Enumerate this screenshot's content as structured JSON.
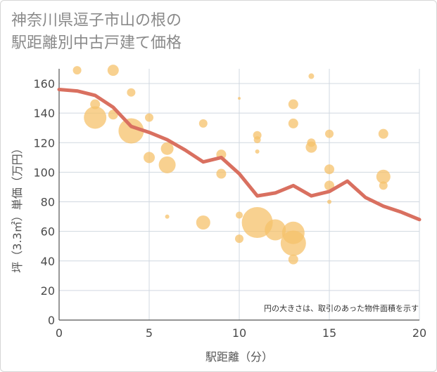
{
  "chart_data": {
    "type": "scatter",
    "title_lines": [
      "神奈川県逗子市山の根の",
      "駅距離別中古戸建て価格"
    ],
    "xlabel": "駅距離（分）",
    "ylabel": "坪（3.3㎡）単価（万円）",
    "xlim": [
      0,
      20
    ],
    "ylim": [
      0,
      170
    ],
    "xticks": [
      0,
      5,
      10,
      15,
      20
    ],
    "yticks": [
      0,
      20,
      40,
      60,
      80,
      100,
      120,
      140,
      160
    ],
    "grid": true,
    "note": "円の大きさは、取引のあった物件面積を示す",
    "colors": {
      "bubble": "#f5c26b",
      "line": "#d97060",
      "grid": "#d0d8e0"
    },
    "bubbles": [
      {
        "x": 1,
        "y": 169,
        "size": 6
      },
      {
        "x": 2,
        "y": 137,
        "size": 16
      },
      {
        "x": 2,
        "y": 146,
        "size": 7
      },
      {
        "x": 3,
        "y": 169,
        "size": 8
      },
      {
        "x": 3,
        "y": 139,
        "size": 7
      },
      {
        "x": 4,
        "y": 154,
        "size": 6
      },
      {
        "x": 4,
        "y": 128,
        "size": 18
      },
      {
        "x": 5,
        "y": 137,
        "size": 6
      },
      {
        "x": 5,
        "y": 110,
        "size": 8
      },
      {
        "x": 6,
        "y": 116,
        "size": 9
      },
      {
        "x": 6,
        "y": 105,
        "size": 12
      },
      {
        "x": 6,
        "y": 70,
        "size": 3
      },
      {
        "x": 8,
        "y": 133,
        "size": 6
      },
      {
        "x": 8,
        "y": 66,
        "size": 10
      },
      {
        "x": 9,
        "y": 112,
        "size": 7
      },
      {
        "x": 9,
        "y": 99,
        "size": 7
      },
      {
        "x": 10,
        "y": 150,
        "size": 2
      },
      {
        "x": 10,
        "y": 71,
        "size": 5
      },
      {
        "x": 10,
        "y": 55,
        "size": 6
      },
      {
        "x": 11,
        "y": 125,
        "size": 6
      },
      {
        "x": 11,
        "y": 122,
        "size": 5
      },
      {
        "x": 11,
        "y": 114,
        "size": 3
      },
      {
        "x": 11,
        "y": 66,
        "size": 22
      },
      {
        "x": 12,
        "y": 61,
        "size": 15
      },
      {
        "x": 13,
        "y": 146,
        "size": 7
      },
      {
        "x": 13,
        "y": 133,
        "size": 7
      },
      {
        "x": 13,
        "y": 59,
        "size": 16
      },
      {
        "x": 13,
        "y": 52,
        "size": 18
      },
      {
        "x": 13,
        "y": 41,
        "size": 7
      },
      {
        "x": 14,
        "y": 165,
        "size": 4
      },
      {
        "x": 14,
        "y": 120,
        "size": 6
      },
      {
        "x": 14,
        "y": 117,
        "size": 8
      },
      {
        "x": 15,
        "y": 126,
        "size": 6
      },
      {
        "x": 15,
        "y": 102,
        "size": 7
      },
      {
        "x": 15,
        "y": 91,
        "size": 7
      },
      {
        "x": 15,
        "y": 80,
        "size": 3
      },
      {
        "x": 18,
        "y": 126,
        "size": 7
      },
      {
        "x": 18,
        "y": 97,
        "size": 10
      },
      {
        "x": 18,
        "y": 91,
        "size": 6
      }
    ],
    "trend": {
      "x": [
        0,
        1,
        2,
        3,
        4,
        5,
        6,
        7,
        8,
        9,
        10,
        11,
        12,
        13,
        14,
        15,
        16,
        17,
        18,
        19,
        20
      ],
      "y": [
        156,
        155,
        152,
        144,
        131,
        127,
        122,
        115,
        107,
        110,
        99,
        84,
        86,
        91,
        84,
        87,
        94,
        83,
        77,
        73,
        68
      ]
    }
  }
}
